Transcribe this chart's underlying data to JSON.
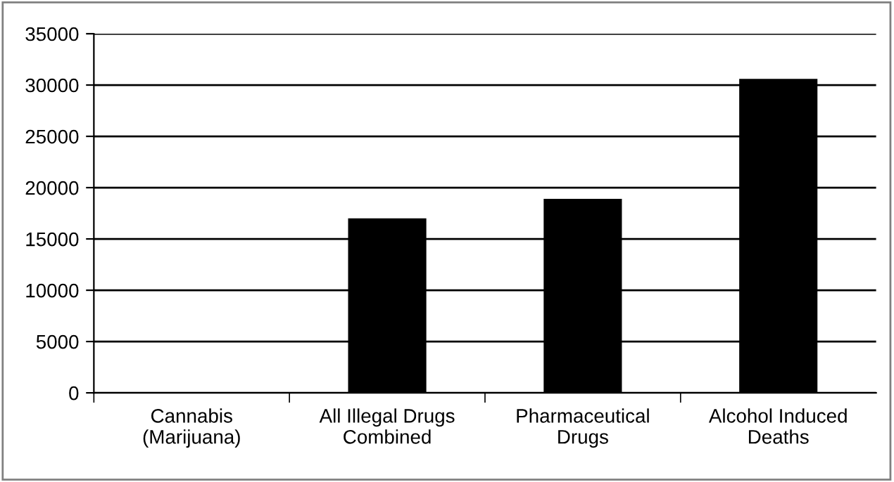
{
  "chart_data": {
    "type": "bar",
    "categories": [
      "Cannabis\n(Marijuana)",
      "All Illegal Drugs\nCombined",
      "Pharmaceutical\nDrugs",
      "Alcohol Induced\nDeaths"
    ],
    "values": [
      0,
      17000,
      18900,
      30600
    ],
    "color": "#000000",
    "ylim": [
      0,
      35000
    ],
    "yticks": [
      0,
      5000,
      10000,
      15000,
      20000,
      25000,
      30000,
      35000
    ],
    "grid": "y"
  }
}
